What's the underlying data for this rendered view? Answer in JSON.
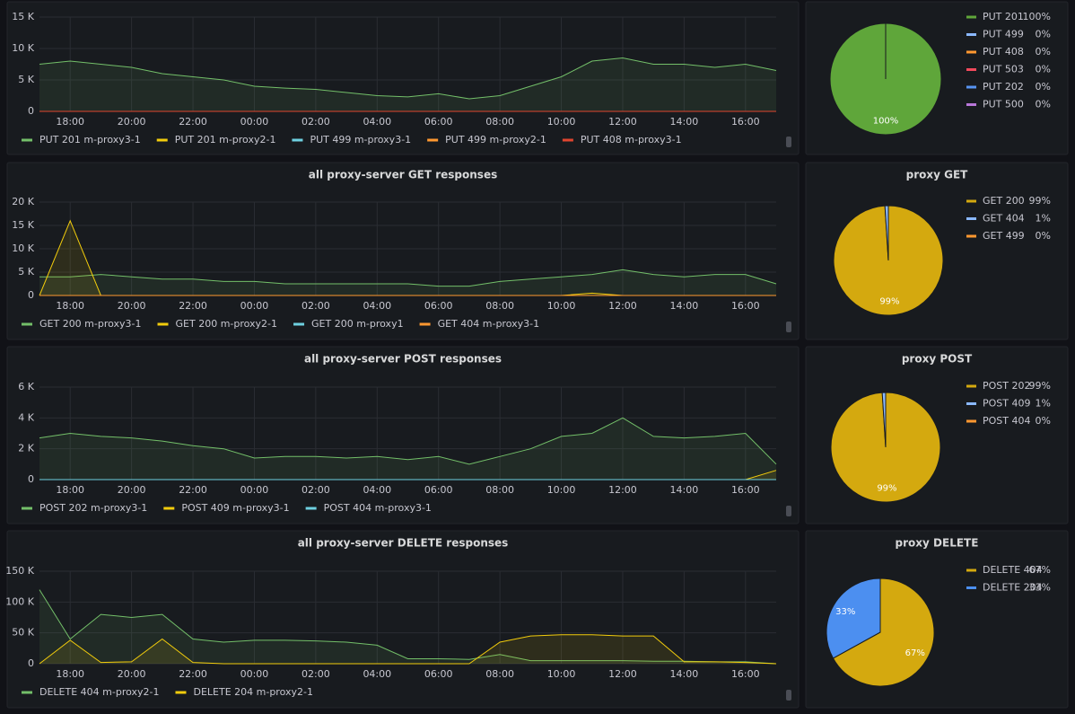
{
  "chart_data": [
    {
      "type": "line",
      "categories": [
        null,
        "18:00",
        null,
        "20:00",
        null,
        "22:00",
        null,
        "00:00",
        null,
        "02:00",
        null,
        "04:00",
        null,
        "06:00",
        null,
        "08:00",
        null,
        "10:00",
        null,
        "12:00",
        null,
        "14:00",
        null,
        "16:00",
        null
      ],
      "ylim": [
        0,
        15000
      ],
      "yticks": [
        0,
        {
          "value": 5000,
          "label": "5 K"
        },
        {
          "value": 10000,
          "label": "10 K"
        },
        {
          "value": 15000,
          "label": "15 K"
        }
      ],
      "grid": true,
      "series": [
        {
          "name": "PUT 201 m-proxy3-1",
          "color": "#73bf69",
          "values": [
            7500,
            8000,
            7500,
            7000,
            6000,
            5500,
            5000,
            4000,
            3700,
            3500,
            3000,
            2500,
            2300,
            2800,
            2000,
            2500,
            4000,
            5500,
            8000,
            8500,
            7500,
            7500,
            7000,
            7500,
            6500
          ]
        },
        {
          "name": "PUT 201 m-proxy2-1",
          "color": "#f2cc0c",
          "values": [
            0,
            0,
            0,
            0,
            0,
            0,
            0,
            0,
            0,
            0,
            0,
            0,
            0,
            0,
            0,
            0,
            0,
            0,
            0,
            0,
            0,
            0,
            0,
            0,
            0
          ]
        },
        {
          "name": "PUT 499 m-proxy3-1",
          "color": "#6ed0e0",
          "values": [
            0,
            0,
            0,
            0,
            0,
            0,
            0,
            0,
            0,
            0,
            0,
            0,
            0,
            0,
            0,
            0,
            0,
            0,
            0,
            0,
            0,
            0,
            0,
            0,
            0
          ]
        },
        {
          "name": "PUT 499 m-proxy2-1",
          "color": "#ff9830",
          "values": [
            0,
            0,
            0,
            0,
            0,
            0,
            0,
            0,
            0,
            0,
            0,
            0,
            0,
            0,
            0,
            0,
            0,
            0,
            0,
            0,
            0,
            0,
            0,
            0,
            0
          ]
        },
        {
          "name": "PUT 408 m-proxy3-1",
          "color": "#e0452f",
          "values": [
            0,
            0,
            0,
            0,
            0,
            0,
            0,
            0,
            0,
            0,
            0,
            0,
            0,
            0,
            0,
            0,
            0,
            0,
            0,
            0,
            0,
            0,
            0,
            0,
            0
          ]
        }
      ]
    },
    {
      "type": "pie",
      "categories": [
        "PUT 201",
        "PUT 499",
        "PUT 408",
        "PUT 503",
        "PUT 202",
        "PUT 500"
      ],
      "values": [
        100,
        0,
        0,
        0,
        0,
        0
      ],
      "value_labels": [
        "100%",
        "0%",
        "0%",
        "0%",
        "0%",
        "0%"
      ],
      "colors": [
        "#5fa63a",
        "#8ab8ff",
        "#ff9830",
        "#f2495c",
        "#5794f2",
        "#b877d9"
      ]
    },
    {
      "type": "line",
      "title": "all proxy-server GET responses",
      "categories": [
        null,
        "18:00",
        null,
        "20:00",
        null,
        "22:00",
        null,
        "00:00",
        null,
        "02:00",
        null,
        "04:00",
        null,
        "06:00",
        null,
        "08:00",
        null,
        "10:00",
        null,
        "12:00",
        null,
        "14:00",
        null,
        "16:00",
        null
      ],
      "ylim": [
        0,
        20000
      ],
      "yticks": [
        0,
        {
          "value": 5000,
          "label": "5 K"
        },
        {
          "value": 10000,
          "label": "10 K"
        },
        {
          "value": 15000,
          "label": "15 K"
        },
        {
          "value": 20000,
          "label": "20 K"
        }
      ],
      "grid": true,
      "series": [
        {
          "name": "GET 200 m-proxy3-1",
          "color": "#73bf69",
          "values": [
            4000,
            4000,
            4500,
            4000,
            3500,
            3500,
            3000,
            3000,
            2500,
            2500,
            2500,
            2500,
            2500,
            2000,
            2000,
            3000,
            3500,
            4000,
            4500,
            5500,
            4500,
            4000,
            4500,
            4500,
            2500
          ]
        },
        {
          "name": "GET 200 m-proxy2-1",
          "color": "#f2cc0c",
          "values": [
            0,
            16000,
            0,
            0,
            0,
            0,
            0,
            0,
            0,
            0,
            0,
            0,
            0,
            0,
            0,
            0,
            0,
            0,
            500,
            0,
            0,
            0,
            0,
            0,
            0
          ]
        },
        {
          "name": "GET 200 m-proxy1",
          "color": "#6ed0e0",
          "values": [
            0,
            0,
            0,
            0,
            0,
            0,
            0,
            0,
            0,
            0,
            0,
            0,
            0,
            0,
            0,
            0,
            0,
            0,
            0,
            0,
            0,
            0,
            0,
            0,
            0
          ]
        },
        {
          "name": "GET 404 m-proxy3-1",
          "color": "#ff9830",
          "values": [
            0,
            0,
            0,
            0,
            0,
            0,
            0,
            0,
            0,
            0,
            0,
            0,
            0,
            0,
            0,
            0,
            0,
            0,
            0,
            0,
            0,
            0,
            0,
            0,
            0
          ]
        }
      ]
    },
    {
      "type": "pie",
      "title": "proxy GET",
      "categories": [
        "GET 200",
        "GET 404",
        "GET 499"
      ],
      "values": [
        99,
        1,
        0
      ],
      "value_labels": [
        "99%",
        "1%",
        "0%"
      ],
      "colors": [
        "#d4a90f",
        "#8ab8ff",
        "#ff9830"
      ]
    },
    {
      "type": "line",
      "title": "all proxy-server POST responses",
      "categories": [
        null,
        "18:00",
        null,
        "20:00",
        null,
        "22:00",
        null,
        "00:00",
        null,
        "02:00",
        null,
        "04:00",
        null,
        "06:00",
        null,
        "08:00",
        null,
        "10:00",
        null,
        "12:00",
        null,
        "14:00",
        null,
        "16:00",
        null
      ],
      "ylim": [
        0,
        6000
      ],
      "yticks": [
        0,
        {
          "value": 2000,
          "label": "2 K"
        },
        {
          "value": 4000,
          "label": "4 K"
        },
        {
          "value": 6000,
          "label": "6 K"
        }
      ],
      "grid": true,
      "series": [
        {
          "name": "POST 202 m-proxy3-1",
          "color": "#73bf69",
          "values": [
            2700,
            3000,
            2800,
            2700,
            2500,
            2200,
            2000,
            1400,
            1500,
            1500,
            1400,
            1500,
            1300,
            1500,
            1000,
            1500,
            2000,
            2800,
            3000,
            4000,
            2800,
            2700,
            2800,
            3000,
            1000
          ]
        },
        {
          "name": "POST 409 m-proxy3-1",
          "color": "#f2cc0c",
          "values": [
            0,
            0,
            0,
            0,
            0,
            0,
            0,
            0,
            0,
            0,
            0,
            0,
            0,
            0,
            0,
            0,
            0,
            0,
            0,
            0,
            0,
            0,
            0,
            0,
            600
          ]
        },
        {
          "name": "POST 404 m-proxy3-1",
          "color": "#6ed0e0",
          "values": [
            0,
            0,
            0,
            0,
            0,
            0,
            0,
            0,
            0,
            0,
            0,
            0,
            0,
            0,
            0,
            0,
            0,
            0,
            0,
            0,
            0,
            0,
            0,
            0,
            0
          ]
        }
      ]
    },
    {
      "type": "pie",
      "title": "proxy POST",
      "categories": [
        "POST 202",
        "POST 409",
        "POST 404"
      ],
      "values": [
        99,
        1,
        0
      ],
      "value_labels": [
        "99%",
        "1%",
        "0%"
      ],
      "colors": [
        "#d4a90f",
        "#8ab8ff",
        "#ff9830"
      ]
    },
    {
      "type": "line",
      "title": "all proxy-server DELETE responses",
      "categories": [
        null,
        "18:00",
        null,
        "20:00",
        null,
        "22:00",
        null,
        "00:00",
        null,
        "02:00",
        null,
        "04:00",
        null,
        "06:00",
        null,
        "08:00",
        null,
        "10:00",
        null,
        "12:00",
        null,
        "14:00",
        null,
        "16:00",
        null
      ],
      "ylim": [
        0,
        150000
      ],
      "yticks": [
        0,
        {
          "value": 50000,
          "label": "50 K"
        },
        {
          "value": 100000,
          "label": "100 K"
        },
        {
          "value": 150000,
          "label": "150 K"
        }
      ],
      "grid": true,
      "series": [
        {
          "name": "DELETE 404 m-proxy2-1",
          "color": "#73bf69",
          "values": [
            120000,
            40000,
            80000,
            75000,
            80000,
            40000,
            35000,
            38000,
            38000,
            37000,
            35000,
            30000,
            8000,
            8000,
            7000,
            15000,
            5000,
            5000,
            5000,
            5000,
            4000,
            4000,
            3000,
            3000,
            0
          ]
        },
        {
          "name": "DELETE 204 m-proxy2-1",
          "color": "#f2cc0c",
          "values": [
            0,
            38000,
            2000,
            3000,
            40000,
            2000,
            0,
            0,
            0,
            0,
            0,
            0,
            0,
            0,
            0,
            35000,
            45000,
            47000,
            47000,
            45000,
            45000,
            3000,
            3000,
            2000,
            0
          ]
        }
      ]
    },
    {
      "type": "pie",
      "title": "proxy DELETE",
      "categories": [
        "DELETE 404",
        "DELETE 204"
      ],
      "values": [
        67,
        33
      ],
      "value_labels": [
        "67%",
        "33%"
      ],
      "colors": [
        "#d4a90f",
        "#4c8ff0"
      ]
    }
  ]
}
